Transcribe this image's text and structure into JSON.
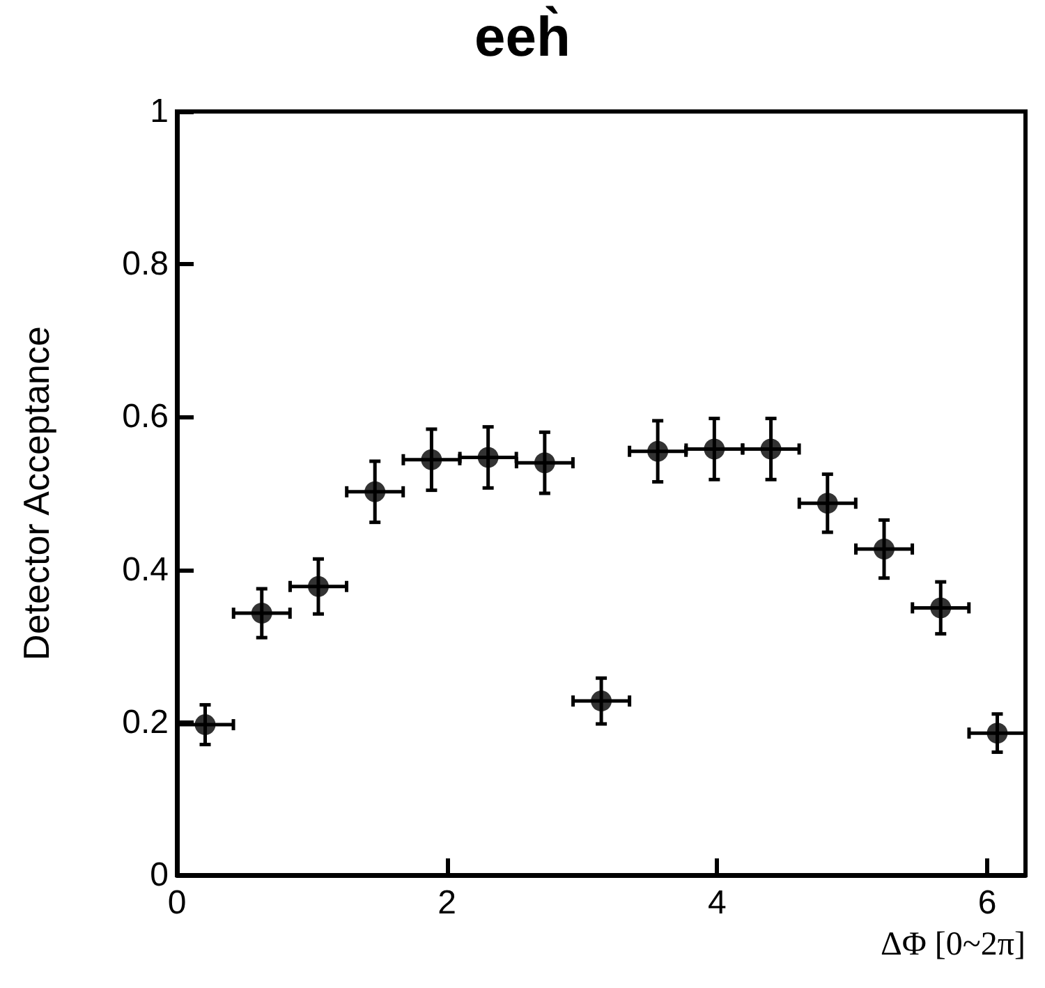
{
  "chart_data": {
    "type": "scatter",
    "title": "eeh̀",
    "xlabel": "ΔΦ [0~2π]",
    "ylabel": "Detector Acceptance",
    "x": [
      0.209,
      0.628,
      1.047,
      1.466,
      1.885,
      2.304,
      2.723,
      3.142,
      3.56,
      3.979,
      4.398,
      4.817,
      5.236,
      5.655,
      6.074
    ],
    "values": [
      0.197,
      0.343,
      0.378,
      0.502,
      0.544,
      0.547,
      0.54,
      0.228,
      0.555,
      0.558,
      0.558,
      0.487,
      0.427,
      0.35,
      0.186
    ],
    "errors": [
      0.026,
      0.032,
      0.036,
      0.04,
      0.04,
      0.04,
      0.04,
      0.03,
      0.04,
      0.04,
      0.04,
      0.038,
      0.038,
      0.034,
      0.025
    ],
    "xerrors": [
      0.209,
      0.209,
      0.209,
      0.209,
      0.209,
      0.209,
      0.209,
      0.209,
      0.209,
      0.209,
      0.209,
      0.209,
      0.209,
      0.209,
      0.209
    ],
    "color": "#000000",
    "marker": "circle",
    "xlim": [
      0,
      6.283
    ],
    "xticks": [
      0,
      2,
      4,
      6
    ],
    "ylim": [
      0,
      1
    ],
    "yticks": [
      0,
      0.2,
      0.4,
      0.6,
      0.8,
      1
    ]
  }
}
